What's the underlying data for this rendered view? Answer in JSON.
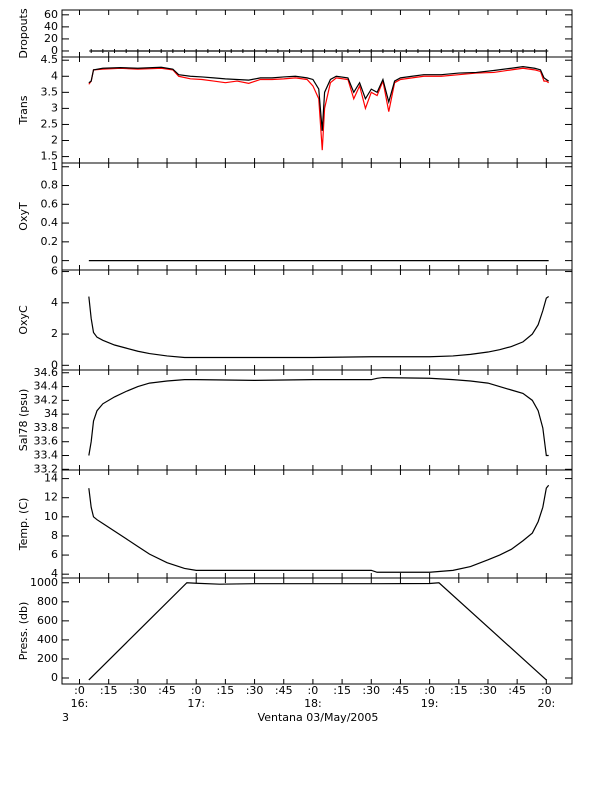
{
  "x_axis": {
    "xlim": [
      15.85,
      20.22
    ],
    "xticks": [
      {
        "value": 16,
        "label": ":0"
      },
      {
        "value": 16.25,
        "label": ":15"
      },
      {
        "value": 16.5,
        "label": ":30"
      },
      {
        "value": 16.75,
        "label": ":45"
      },
      {
        "value": 17,
        "label": ":0"
      },
      {
        "value": 17.25,
        "label": ":15"
      },
      {
        "value": 17.5,
        "label": ":30"
      },
      {
        "value": 17.75,
        "label": ":45"
      },
      {
        "value": 18,
        "label": ":0"
      },
      {
        "value": 18.25,
        "label": ":15"
      },
      {
        "value": 18.5,
        "label": ":30"
      },
      {
        "value": 18.75,
        "label": ":45"
      },
      {
        "value": 19,
        "label": ":0"
      },
      {
        "value": 19.25,
        "label": ":15"
      },
      {
        "value": 19.5,
        "label": ":30"
      },
      {
        "value": 19.75,
        "label": ":45"
      },
      {
        "value": 20,
        "label": ":0"
      }
    ],
    "hour_labels": [
      {
        "value": 16,
        "label": "16:"
      },
      {
        "value": 17,
        "label": "17:"
      },
      {
        "value": 18,
        "label": "18:"
      },
      {
        "value": 19,
        "label": "19:"
      },
      {
        "value": 20,
        "label": "20:"
      }
    ],
    "label": "Ventana 03/May/2005",
    "corner_text": "3"
  },
  "chart_data": [
    {
      "type": "line",
      "ylabel": "Dropouts",
      "ylim": [
        -10,
        68
      ],
      "yticks": [
        0,
        20,
        40,
        60
      ],
      "markers": "plus",
      "x": [
        16.1,
        16.2,
        16.3,
        16.4,
        16.5,
        16.6,
        16.7,
        16.8,
        16.9,
        17.0,
        17.1,
        17.2,
        17.3,
        17.4,
        17.5,
        17.6,
        17.7,
        17.8,
        17.9,
        18.0,
        18.1,
        18.2,
        18.3,
        18.4,
        18.5,
        18.6,
        18.7,
        18.8,
        18.9,
        19.0,
        19.1,
        19.2,
        19.3,
        19.4,
        19.5,
        19.6,
        19.7,
        19.8,
        19.9,
        20.0
      ],
      "series": [
        {
          "color": "#000000",
          "values": [
            0,
            0,
            0,
            0,
            0,
            0,
            0,
            0,
            0,
            0,
            0,
            0,
            0,
            0,
            0,
            0,
            0,
            0,
            0,
            0,
            0,
            0,
            0,
            0,
            0,
            0,
            0,
            0,
            0,
            0,
            0,
            0,
            0,
            0,
            0,
            0,
            0,
            0,
            0,
            0
          ]
        }
      ]
    },
    {
      "type": "line",
      "ylabel": "Trans",
      "ylim": [
        1.3,
        4.6
      ],
      "yticks": [
        1.5,
        2.0,
        2.5,
        3.0,
        3.5,
        4.0,
        4.5
      ],
      "x": [
        16.08,
        16.1,
        16.12,
        16.2,
        16.35,
        16.5,
        16.7,
        16.8,
        16.85,
        16.95,
        17.05,
        17.15,
        17.25,
        17.35,
        17.45,
        17.55,
        17.65,
        17.75,
        17.85,
        17.95,
        18.0,
        18.05,
        18.08,
        18.1,
        18.15,
        18.2,
        18.3,
        18.35,
        18.4,
        18.45,
        18.5,
        18.55,
        18.6,
        18.65,
        18.7,
        18.75,
        18.85,
        18.95,
        19.1,
        19.25,
        19.4,
        19.55,
        19.7,
        19.8,
        19.9,
        19.95,
        19.98,
        20.0,
        20.02
      ],
      "series": [
        {
          "color": "#ff0000",
          "values": [
            3.75,
            3.85,
            4.2,
            4.22,
            4.25,
            4.22,
            4.25,
            4.2,
            4.0,
            3.92,
            3.9,
            3.85,
            3.8,
            3.85,
            3.78,
            3.9,
            3.9,
            3.92,
            3.95,
            3.9,
            3.7,
            3.3,
            1.7,
            3.0,
            3.8,
            3.95,
            3.9,
            3.3,
            3.7,
            3.0,
            3.5,
            3.4,
            3.85,
            2.9,
            3.8,
            3.9,
            3.95,
            4.0,
            4.0,
            4.05,
            4.1,
            4.12,
            4.2,
            4.25,
            4.2,
            4.15,
            3.85,
            3.85,
            3.8
          ]
        },
        {
          "color": "#000000",
          "values": [
            3.8,
            3.85,
            4.2,
            4.25,
            4.27,
            4.25,
            4.28,
            4.22,
            4.05,
            4.0,
            3.98,
            3.95,
            3.92,
            3.9,
            3.88,
            3.95,
            3.95,
            3.98,
            4.0,
            3.95,
            3.9,
            3.6,
            2.3,
            3.5,
            3.9,
            4.0,
            3.95,
            3.5,
            3.8,
            3.3,
            3.6,
            3.5,
            3.9,
            3.2,
            3.85,
            3.95,
            4.0,
            4.05,
            4.05,
            4.1,
            4.12,
            4.18,
            4.25,
            4.3,
            4.25,
            4.2,
            3.95,
            3.9,
            3.85
          ]
        }
      ]
    },
    {
      "type": "line",
      "ylabel": "OxyT",
      "ylim": [
        -0.1,
        1.04
      ],
      "yticks": [
        0.0,
        0.2,
        0.4,
        0.6,
        0.8,
        1.0
      ],
      "x": [
        16.08,
        20.02
      ],
      "series": [
        {
          "color": "#000000",
          "values": [
            0,
            0
          ]
        }
      ]
    },
    {
      "type": "line",
      "ylabel": "OxyC",
      "ylim": [
        -0.3,
        6.1
      ],
      "yticks": [
        0,
        2,
        4,
        6
      ],
      "x": [
        16.08,
        16.1,
        16.12,
        16.15,
        16.2,
        16.3,
        16.4,
        16.5,
        16.6,
        16.75,
        16.9,
        17.0,
        17.5,
        18.0,
        18.5,
        19.0,
        19.2,
        19.35,
        19.5,
        19.6,
        19.7,
        19.8,
        19.88,
        19.93,
        19.97,
        20.0,
        20.02
      ],
      "series": [
        {
          "color": "#000000",
          "values": [
            4.4,
            3.0,
            2.1,
            1.8,
            1.6,
            1.3,
            1.1,
            0.9,
            0.75,
            0.6,
            0.5,
            0.5,
            0.5,
            0.5,
            0.55,
            0.55,
            0.6,
            0.7,
            0.85,
            1.0,
            1.2,
            1.5,
            2.0,
            2.6,
            3.5,
            4.3,
            4.4
          ]
        }
      ]
    },
    {
      "type": "line",
      "ylabel": "Sal78 (psu)",
      "ylim": [
        33.19,
        34.64
      ],
      "yticks": [
        33.2,
        33.4,
        33.6,
        33.8,
        34.0,
        34.2,
        34.4,
        34.6
      ],
      "x": [
        16.08,
        16.1,
        16.12,
        16.15,
        16.2,
        16.3,
        16.4,
        16.5,
        16.6,
        16.75,
        16.9,
        17.0,
        17.5,
        18.0,
        18.5,
        18.55,
        18.6,
        19.0,
        19.2,
        19.35,
        19.5,
        19.6,
        19.7,
        19.8,
        19.88,
        19.93,
        19.97,
        20.0,
        20.02
      ],
      "series": [
        {
          "color": "#000000",
          "values": [
            33.4,
            33.6,
            33.9,
            34.05,
            34.15,
            34.25,
            34.33,
            34.4,
            34.45,
            34.48,
            34.5,
            34.5,
            34.49,
            34.5,
            34.5,
            34.52,
            34.53,
            34.52,
            34.5,
            34.48,
            34.45,
            34.4,
            34.35,
            34.3,
            34.2,
            34.05,
            33.8,
            33.4,
            33.4
          ]
        }
      ]
    },
    {
      "type": "line",
      "ylabel": "Temp. (C)",
      "ylim": [
        3.6,
        14.9
      ],
      "yticks": [
        4,
        6,
        8,
        10,
        12,
        14
      ],
      "x": [
        16.08,
        16.1,
        16.12,
        16.15,
        16.2,
        16.3,
        16.4,
        16.5,
        16.6,
        16.75,
        16.9,
        17.0,
        17.5,
        18.0,
        18.5,
        18.55,
        19.0,
        19.2,
        19.35,
        19.5,
        19.6,
        19.7,
        19.8,
        19.88,
        19.93,
        19.97,
        20.0,
        20.02
      ],
      "series": [
        {
          "color": "#000000",
          "values": [
            13.0,
            11.0,
            10.0,
            9.7,
            9.3,
            8.5,
            7.7,
            6.9,
            6.1,
            5.2,
            4.6,
            4.4,
            4.4,
            4.4,
            4.4,
            4.2,
            4.2,
            4.4,
            4.8,
            5.5,
            6.0,
            6.6,
            7.5,
            8.3,
            9.5,
            11.0,
            13.0,
            13.3
          ]
        }
      ]
    },
    {
      "type": "line",
      "ylabel": "Press. (db)",
      "ylim": [
        -63,
        1050
      ],
      "yticks": [
        0,
        200,
        400,
        600,
        800,
        1000
      ],
      "x": [
        16.08,
        16.92,
        17.0,
        17.2,
        17.5,
        18.0,
        18.5,
        19.0,
        19.08,
        20.0
      ],
      "series": [
        {
          "color": "#000000",
          "values": [
            -20,
            1000,
            995,
            985,
            990,
            990,
            990,
            992,
            1000,
            -20
          ]
        }
      ]
    }
  ]
}
